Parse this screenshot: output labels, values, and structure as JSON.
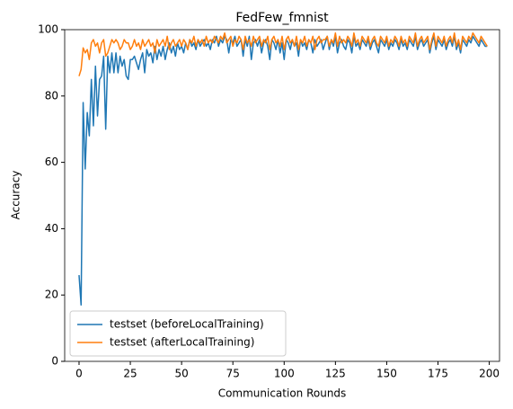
{
  "chart_data": {
    "type": "line",
    "title": "FedFew_fmnist",
    "x_label": "Communication Rounds",
    "y_label": "Accuracy",
    "x": [
      0,
      1,
      2,
      3,
      4,
      5,
      6,
      7,
      8,
      9,
      10,
      11,
      12,
      13,
      14,
      15,
      16,
      17,
      18,
      19,
      20,
      21,
      22,
      23,
      24,
      25,
      26,
      27,
      28,
      29,
      30,
      31,
      32,
      33,
      34,
      35,
      36,
      37,
      38,
      39,
      40,
      41,
      42,
      43,
      44,
      45,
      46,
      47,
      48,
      49,
      50,
      51,
      52,
      53,
      54,
      55,
      56,
      57,
      58,
      59,
      60,
      61,
      62,
      63,
      64,
      65,
      66,
      67,
      68,
      69,
      70,
      71,
      72,
      73,
      74,
      75,
      76,
      77,
      78,
      79,
      80,
      81,
      82,
      83,
      84,
      85,
      86,
      87,
      88,
      89,
      90,
      91,
      92,
      93,
      94,
      95,
      96,
      97,
      98,
      99,
      100,
      101,
      102,
      103,
      104,
      105,
      106,
      107,
      108,
      109,
      110,
      111,
      112,
      113,
      114,
      115,
      116,
      117,
      118,
      119,
      120,
      121,
      122,
      123,
      124,
      125,
      126,
      127,
      128,
      129,
      130,
      131,
      132,
      133,
      134,
      135,
      136,
      137,
      138,
      139,
      140,
      141,
      142,
      143,
      144,
      145,
      146,
      147,
      148,
      149,
      150,
      151,
      152,
      153,
      154,
      155,
      156,
      157,
      158,
      159,
      160,
      161,
      162,
      163,
      164,
      165,
      166,
      167,
      168,
      169,
      170,
      171,
      172,
      173,
      174,
      175,
      176,
      177,
      178,
      179,
      180,
      181,
      182,
      183,
      184,
      185,
      186,
      187,
      188,
      189,
      190,
      191,
      192,
      193,
      194,
      195,
      196,
      197,
      198,
      199
    ],
    "series": [
      {
        "name": "testset (beforeLocalTraining)",
        "color": "#1f77b4",
        "values": [
          26,
          17,
          78,
          58,
          75,
          68,
          85,
          71,
          89,
          74,
          85,
          86,
          92,
          70,
          92,
          87,
          93,
          87,
          93,
          87,
          92,
          89,
          91,
          86,
          85,
          91,
          91,
          92,
          90,
          88,
          91,
          93,
          87,
          94,
          92,
          93,
          90,
          95,
          91,
          94,
          92,
          95,
          91,
          94,
          96,
          93,
          95,
          92,
          96,
          94,
          95,
          93,
          96,
          94,
          97,
          95,
          96,
          94,
          97,
          95,
          96,
          97,
          95,
          96,
          94,
          97,
          96,
          98,
          95,
          97,
          96,
          98,
          97,
          93,
          97,
          96,
          98,
          95,
          96,
          97,
          92,
          97,
          95,
          98,
          91,
          96,
          97,
          95,
          97,
          93,
          96,
          97,
          95,
          91,
          97,
          96,
          94,
          97,
          93,
          96,
          91,
          97,
          96,
          94,
          97,
          95,
          96,
          92,
          97,
          95,
          96,
          94,
          97,
          96,
          93,
          97,
          95,
          96,
          97,
          94,
          96,
          98,
          94,
          97,
          95,
          98,
          93,
          96,
          97,
          95,
          94,
          97,
          96,
          93,
          98,
          95,
          96,
          94,
          97,
          96,
          95,
          97,
          94,
          96,
          97,
          95,
          93,
          97,
          96,
          95,
          97,
          94,
          96,
          95,
          97,
          96,
          94,
          97,
          95,
          96,
          94,
          97,
          96,
          95,
          98,
          94,
          96,
          97,
          95,
          96,
          97,
          93,
          96,
          98,
          94,
          97,
          96,
          95,
          97,
          94,
          96,
          97,
          95,
          98,
          94,
          96,
          93,
          97,
          96,
          95,
          97,
          96,
          98,
          97,
          96,
          95,
          97,
          96,
          95,
          95
        ]
      },
      {
        "name": "testset (afterLocalTraining)",
        "color": "#ff7f0e",
        "values": [
          86,
          88,
          94.5,
          93,
          94,
          91,
          96,
          97,
          95,
          96,
          93,
          96,
          97,
          92,
          93,
          95,
          97,
          96,
          97,
          96,
          94,
          95,
          97,
          96,
          96,
          94,
          95,
          97,
          95,
          96,
          94,
          97,
          95,
          96,
          97,
          95,
          96,
          93,
          97,
          95,
          96,
          97,
          95,
          98,
          94,
          96,
          97,
          95,
          96,
          97,
          95,
          97,
          96,
          94,
          97,
          96,
          98,
          95,
          97,
          96,
          97,
          95,
          98,
          96,
          97,
          96,
          98,
          97,
          96,
          98,
          97,
          99,
          96,
          97,
          98,
          95,
          97,
          96,
          98,
          97,
          94,
          98,
          96,
          97,
          95,
          98,
          96,
          97,
          98,
          95,
          97,
          96,
          98,
          94,
          97,
          98,
          96,
          97,
          95,
          98,
          94,
          97,
          98,
          96,
          97,
          95,
          98,
          94,
          97,
          96,
          98,
          95,
          97,
          96,
          98,
          94,
          97,
          98,
          96,
          97,
          97,
          98,
          95,
          97,
          96,
          99,
          95,
          98,
          96,
          97,
          96,
          98,
          97,
          95,
          99,
          96,
          97,
          95,
          98,
          97,
          96,
          98,
          95,
          97,
          98,
          96,
          95,
          98,
          97,
          96,
          98,
          95,
          97,
          96,
          98,
          97,
          95,
          98,
          96,
          97,
          95,
          98,
          97,
          96,
          99,
          95,
          97,
          98,
          96,
          97,
          98,
          94,
          97,
          99,
          95,
          98,
          97,
          96,
          98,
          95,
          97,
          98,
          96,
          99,
          95,
          97,
          94,
          98,
          97,
          96,
          98,
          97,
          99,
          98,
          97,
          96,
          98,
          97,
          96,
          95
        ]
      }
    ],
    "xlim": [
      -7,
      205
    ],
    "xticks": [
      0,
      25,
      50,
      75,
      100,
      125,
      150,
      175,
      200
    ],
    "ylim": [
      0,
      100
    ],
    "yticks": [
      0,
      20,
      40,
      60,
      80,
      100
    ],
    "legend": "lower left",
    "grid": false
  }
}
